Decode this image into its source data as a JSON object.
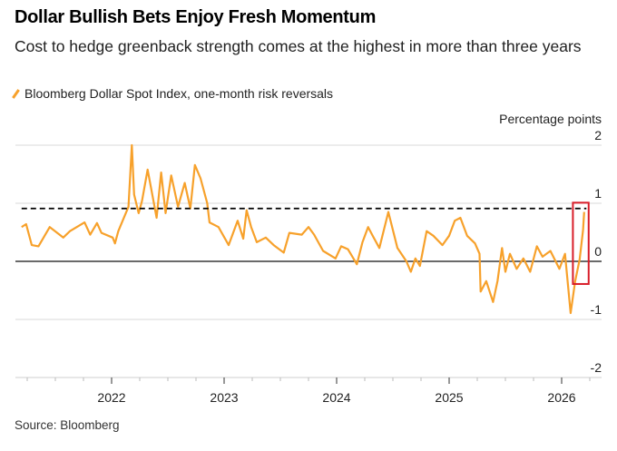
{
  "title": "Dollar Bullish Bets Enjoy Fresh Momentum",
  "subtitle": "Cost to hedge greenback strength comes at the highest in more than three years",
  "source": "Source: Bloomberg",
  "colors": {
    "series": "#f7a12b",
    "highlight": "#d81e2a",
    "reference": "#000000"
  },
  "chart_data": {
    "type": "line",
    "title": "Dollar Bullish Bets Enjoy Fresh Momentum",
    "ylabel": "Percentage points",
    "xlabel": "",
    "ylim": [
      -2,
      2
    ],
    "xlim": [
      2021.15,
      2026.38
    ],
    "yticks": [
      2,
      1,
      0,
      -1,
      -2
    ],
    "ytick_labels": [
      "2",
      "1",
      "0",
      "-1",
      "-2"
    ],
    "xticks": [
      2022,
      2023,
      2024,
      2025,
      2026
    ],
    "xtick_labels": [
      "2022",
      "2023",
      "2024",
      "2025",
      "2026"
    ],
    "grid": true,
    "legend": {
      "placement": "top-left",
      "entries": [
        "Bloomberg Dollar Spot Index, one-month risk reversals"
      ]
    },
    "series": [
      {
        "name": "Bloomberg Dollar Spot Index, one-month risk reversals",
        "x": [
          2021.2,
          2021.24,
          2021.29,
          2021.35,
          2021.45,
          2021.57,
          2021.63,
          2021.76,
          2021.81,
          2021.87,
          2021.91,
          2022.01,
          2022.03,
          2022.06,
          2022.15,
          2022.18,
          2022.2,
          2022.24,
          2022.27,
          2022.32,
          2022.35,
          2022.4,
          2022.44,
          2022.48,
          2022.53,
          2022.59,
          2022.65,
          2022.7,
          2022.74,
          2022.79,
          2022.85,
          2022.87,
          2022.95,
          2023.04,
          2023.12,
          2023.17,
          2023.2,
          2023.24,
          2023.29,
          2023.37,
          2023.44,
          2023.53,
          2023.58,
          2023.69,
          2023.75,
          2023.8,
          2023.88,
          2023.99,
          2024.04,
          2024.1,
          2024.18,
          2024.23,
          2024.28,
          2024.32,
          2024.38,
          2024.46,
          2024.54,
          2024.62,
          2024.66,
          2024.7,
          2024.74,
          2024.8,
          2024.86,
          2024.94,
          2025.0,
          2025.05,
          2025.1,
          2025.16,
          2025.23,
          2025.27,
          2025.28,
          2025.33,
          2025.39,
          2025.43,
          2025.47,
          2025.5,
          2025.54,
          2025.6,
          2025.66,
          2025.72,
          2025.78,
          2025.83,
          2025.9,
          2025.98,
          2026.03,
          2026.08,
          2026.12,
          2026.16,
          2026.19,
          2026.2
        ],
        "values": [
          0.59,
          0.64,
          0.28,
          0.26,
          0.59,
          0.41,
          0.52,
          0.67,
          0.46,
          0.66,
          0.49,
          0.41,
          0.31,
          0.52,
          0.94,
          2.0,
          1.15,
          0.83,
          1.04,
          1.58,
          1.27,
          0.75,
          1.53,
          0.83,
          1.48,
          0.94,
          1.35,
          0.91,
          1.66,
          1.43,
          1.0,
          0.67,
          0.59,
          0.28,
          0.7,
          0.39,
          0.88,
          0.59,
          0.33,
          0.41,
          0.28,
          0.15,
          0.49,
          0.46,
          0.59,
          0.46,
          0.18,
          0.05,
          0.26,
          0.21,
          -0.05,
          0.33,
          0.59,
          0.44,
          0.23,
          0.85,
          0.23,
          0.0,
          -0.18,
          0.05,
          -0.08,
          0.52,
          0.44,
          0.28,
          0.44,
          0.7,
          0.75,
          0.44,
          0.31,
          0.13,
          -0.52,
          -0.34,
          -0.7,
          -0.34,
          0.23,
          -0.18,
          0.13,
          -0.13,
          0.05,
          -0.18,
          0.26,
          0.08,
          0.18,
          -0.13,
          0.13,
          -0.89,
          -0.34,
          0.03,
          0.54,
          0.85
        ]
      }
    ],
    "annotations": [
      {
        "type": "dashed-hline",
        "y": 0.91,
        "x_range": [
          2021.2,
          2026.22
        ]
      },
      {
        "type": "highlight-box",
        "x_range": [
          2026.1,
          2026.24
        ],
        "y_range": [
          -0.39,
          1.01
        ]
      }
    ]
  }
}
